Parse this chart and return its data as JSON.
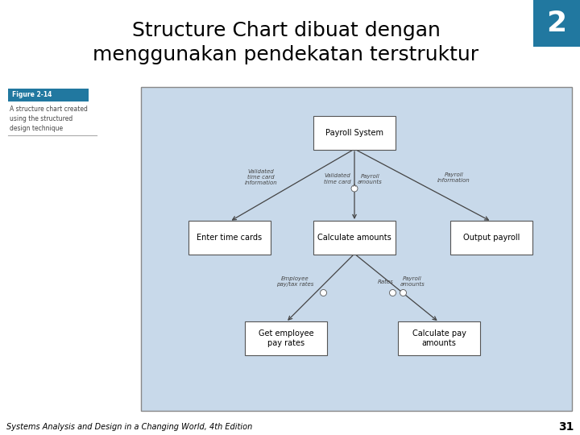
{
  "title_line1": "Structure Chart dibuat dengan",
  "title_line2": "menggunakan pendekatan terstruktur",
  "title_fontsize": 18,
  "slide_bg": "#ffffff",
  "corner_box_color": "#2178a0",
  "corner_number": "2",
  "figure_label": "Figure 2-14",
  "figure_caption_line1": "A structure chart created",
  "figure_caption_line2": "using the structured",
  "figure_caption_line3": "design technique",
  "diagram_bg": "#c8d9ea",
  "diagram_border": "#888888",
  "box_fill": "#ffffff",
  "box_edge": "#555555",
  "footer_text": "Systems Analysis and Design in a Changing World, 4th Edition",
  "footer_page": "31",
  "nodes": {
    "payroll_system": {
      "label": "Payroll System"
    },
    "enter_time": {
      "label": "Enter time cards"
    },
    "calc_amounts": {
      "label": "Calculate amounts"
    },
    "output_payroll": {
      "label": "Output payroll"
    },
    "get_employee": {
      "label": "Get employee\npay rates"
    },
    "calc_pay": {
      "label": "Calculate pay\namounts"
    }
  }
}
